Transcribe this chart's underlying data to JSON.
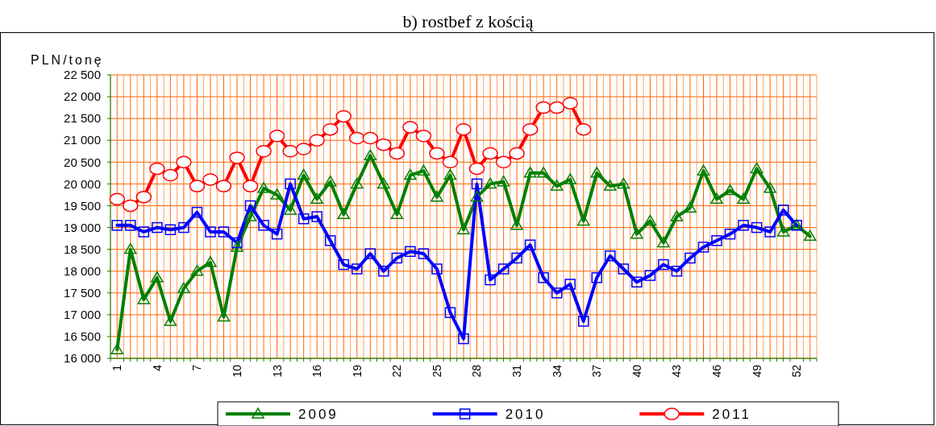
{
  "chart_data": {
    "type": "line",
    "title": "b) rostbef z kością",
    "ylabel": "PLN/tonę",
    "xlim": [
      0.5,
      53.5
    ],
    "xticks": [
      {
        "value": 0.5,
        "label": null
      },
      1,
      {
        "value": 1.5,
        "label": null
      },
      {
        "value": 2,
        "label": null
      },
      {
        "value": 2.5,
        "label": null
      },
      {
        "value": 3,
        "label": null
      },
      {
        "value": 3.5,
        "label": null
      },
      4,
      {
        "value": 4.5,
        "label": null
      },
      {
        "value": 5,
        "label": null
      },
      {
        "value": 5.5,
        "label": null
      },
      {
        "value": 6,
        "label": null
      },
      {
        "value": 6.5,
        "label": null
      },
      7,
      {
        "value": 7.5,
        "label": null
      },
      {
        "value": 8,
        "label": null
      },
      {
        "value": 8.5,
        "label": null
      },
      {
        "value": 9,
        "label": null
      },
      {
        "value": 9.5,
        "label": null
      },
      10,
      {
        "value": 10.5,
        "label": null
      },
      {
        "value": 11,
        "label": null
      },
      {
        "value": 11.5,
        "label": null
      },
      {
        "value": 12,
        "label": null
      },
      {
        "value": 12.5,
        "label": null
      },
      13,
      {
        "value": 13.5,
        "label": null
      },
      {
        "value": 14,
        "label": null
      },
      {
        "value": 14.5,
        "label": null
      },
      {
        "value": 15,
        "label": null
      },
      {
        "value": 15.5,
        "label": null
      },
      16,
      {
        "value": 16.5,
        "label": null
      },
      {
        "value": 17,
        "label": null
      },
      {
        "value": 17.5,
        "label": null
      },
      {
        "value": 18,
        "label": null
      },
      {
        "value": 18.5,
        "label": null
      },
      19,
      {
        "value": 19.5,
        "label": null
      },
      {
        "value": 20,
        "label": null
      },
      {
        "value": 20.5,
        "label": null
      },
      {
        "value": 21,
        "label": null
      },
      {
        "value": 21.5,
        "label": null
      },
      22,
      {
        "value": 22.5,
        "label": null
      },
      {
        "value": 23,
        "label": null
      },
      {
        "value": 23.5,
        "label": null
      },
      {
        "value": 24,
        "label": null
      },
      {
        "value": 24.5,
        "label": null
      },
      25,
      {
        "value": 25.5,
        "label": null
      },
      {
        "value": 26,
        "label": null
      },
      {
        "value": 26.5,
        "label": null
      },
      {
        "value": 27,
        "label": null
      },
      {
        "value": 27.5,
        "label": null
      },
      28,
      {
        "value": 28.5,
        "label": null
      },
      {
        "value": 29,
        "label": null
      },
      {
        "value": 29.5,
        "label": null
      },
      {
        "value": 30,
        "label": null
      },
      {
        "value": 30.5,
        "label": null
      },
      31,
      {
        "value": 31.5,
        "label": null
      },
      {
        "value": 32,
        "label": null
      },
      {
        "value": 32.5,
        "label": null
      },
      {
        "value": 33,
        "label": null
      },
      {
        "value": 33.5,
        "label": null
      },
      34,
      {
        "value": 34.5,
        "label": null
      },
      {
        "value": 35,
        "label": null
      },
      {
        "value": 35.5,
        "label": null
      },
      {
        "value": 36,
        "label": null
      },
      {
        "value": 36.5,
        "label": null
      },
      37,
      {
        "value": 37.5,
        "label": null
      },
      {
        "value": 38,
        "label": null
      },
      {
        "value": 38.5,
        "label": null
      },
      {
        "value": 39,
        "label": null
      },
      {
        "value": 39.5,
        "label": null
      },
      40,
      {
        "value": 40.5,
        "label": null
      },
      {
        "value": 41,
        "label": null
      },
      {
        "value": 41.5,
        "label": null
      },
      {
        "value": 42,
        "label": null
      },
      {
        "value": 42.5,
        "label": null
      },
      43,
      {
        "value": 43.5,
        "label": null
      },
      {
        "value": 44,
        "label": null
      },
      {
        "value": 44.5,
        "label": null
      },
      {
        "value": 45,
        "label": null
      },
      {
        "value": 45.5,
        "label": null
      },
      46,
      {
        "value": 46.5,
        "label": null
      },
      {
        "value": 47,
        "label": null
      },
      {
        "value": 47.5,
        "label": null
      },
      {
        "value": 48,
        "label": null
      },
      {
        "value": 48.5,
        "label": null
      },
      49,
      {
        "value": 49.5,
        "label": null
      },
      {
        "value": 50,
        "label": null
      },
      {
        "value": 50.5,
        "label": null
      },
      {
        "value": 51,
        "label": null
      },
      {
        "value": 51.5,
        "label": null
      },
      52,
      {
        "value": 52.5,
        "label": null
      },
      {
        "value": 53,
        "label": null
      },
      {
        "value": 53.5,
        "label": null
      }
    ],
    "ylim": [
      16000,
      22500
    ],
    "yticks": [
      {
        "value": 16000,
        "label": "16 000"
      },
      {
        "value": 16500,
        "label": "16 500"
      },
      {
        "value": 17000,
        "label": "17 000"
      },
      {
        "value": 17500,
        "label": "17 500"
      },
      {
        "value": 18000,
        "label": "18 000"
      },
      {
        "value": 18500,
        "label": "18 500"
      },
      {
        "value": 19000,
        "label": "19 000"
      },
      {
        "value": 19500,
        "label": "19 500"
      },
      {
        "value": 20000,
        "label": "20 000"
      },
      {
        "value": 20500,
        "label": "20 500"
      },
      {
        "value": 21000,
        "label": "21 000"
      },
      {
        "value": 21500,
        "label": "21 500"
      },
      {
        "value": 22000,
        "label": "22 000"
      },
      {
        "value": 22500,
        "label": "22 500"
      }
    ],
    "grid": true,
    "legend": "bottom",
    "x": [
      1,
      2,
      3,
      4,
      5,
      6,
      7,
      8,
      9,
      10,
      11,
      12,
      13,
      14,
      15,
      16,
      17,
      18,
      19,
      20,
      21,
      22,
      23,
      24,
      25,
      26,
      27,
      28,
      29,
      30,
      31,
      32,
      33,
      34,
      35,
      36,
      37,
      38,
      39,
      40,
      41,
      42,
      43,
      44,
      45,
      46,
      47,
      48,
      49,
      50,
      51,
      52,
      53
    ],
    "series": [
      {
        "name": "2009",
        "color": "#008000",
        "marker": "triangle",
        "values": [
          16200,
          18500,
          17350,
          17850,
          16850,
          17600,
          18000,
          18200,
          16950,
          18550,
          19250,
          19900,
          19750,
          19400,
          20200,
          19650,
          20050,
          19300,
          20000,
          20650,
          20000,
          19300,
          20200,
          20300,
          19700,
          20200,
          18950,
          19700,
          20000,
          20050,
          19050,
          20250,
          20250,
          19950,
          20100,
          19150,
          20250,
          19950,
          20000,
          18850,
          19150,
          18650,
          19250,
          19450,
          20300,
          19650,
          19850,
          19650,
          20350,
          19900,
          18900,
          19050,
          18800
        ]
      },
      {
        "name": "2010",
        "color": "#0000ff",
        "marker": "square",
        "values": [
          19050,
          19050,
          18900,
          19000,
          18950,
          19000,
          19350,
          18900,
          18900,
          18650,
          19500,
          19050,
          18850,
          20000,
          19200,
          19250,
          18700,
          18150,
          18050,
          18400,
          18000,
          18300,
          18450,
          18400,
          18050,
          17050,
          16450,
          20000,
          17800,
          18050,
          18300,
          18600,
          17850,
          17500,
          17700,
          16850,
          17850,
          18350,
          18050,
          17750,
          17900,
          18150,
          18000,
          18300,
          18550,
          18700,
          18850,
          19050,
          19000,
          18900,
          19400,
          19050,
          null
        ]
      },
      {
        "name": "2011",
        "color": "#ff0000",
        "marker": "circle",
        "values": [
          19650,
          19500,
          19700,
          20350,
          20200,
          20500,
          19950,
          20100,
          19950,
          20600,
          19950,
          20750,
          21100,
          20750,
          20800,
          21000,
          21250,
          21550,
          21050,
          21050,
          20900,
          20700,
          21300,
          21100,
          20700,
          20500,
          21250,
          20350,
          20700,
          20500,
          20700,
          21250,
          21750,
          21750,
          21850,
          21250,
          null,
          null,
          null,
          null,
          null,
          null,
          null,
          null,
          null,
          null,
          null,
          null,
          null,
          null,
          null,
          null,
          null
        ]
      }
    ]
  }
}
